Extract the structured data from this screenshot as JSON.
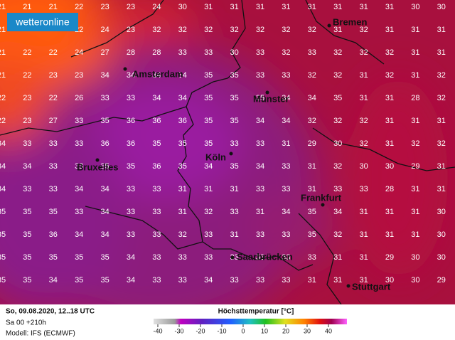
{
  "header": {
    "brand": "wetteronline"
  },
  "grid": {
    "rows": [
      [
        21,
        21,
        21,
        22,
        23,
        23,
        24,
        30,
        31,
        31,
        31,
        31,
        31,
        31,
        31,
        31,
        30,
        30
      ],
      [
        21,
        null,
        null,
        22,
        24,
        23,
        32,
        32,
        32,
        32,
        32,
        32,
        32,
        31,
        32,
        31,
        31,
        31
      ],
      [
        21,
        22,
        22,
        24,
        27,
        28,
        28,
        33,
        33,
        30,
        33,
        32,
        33,
        32,
        32,
        32,
        31,
        31
      ],
      [
        21,
        22,
        23,
        23,
        34,
        34,
        34,
        34,
        35,
        35,
        33,
        33,
        32,
        32,
        31,
        32,
        31,
        32
      ],
      [
        22,
        23,
        22,
        26,
        33,
        33,
        34,
        34,
        35,
        35,
        35,
        34,
        34,
        35,
        31,
        31,
        28,
        32
      ],
      [
        22,
        23,
        27,
        33,
        35,
        36,
        36,
        36,
        35,
        35,
        34,
        34,
        32,
        32,
        32,
        31,
        31,
        31
      ],
      [
        34,
        33,
        33,
        33,
        36,
        36,
        35,
        35,
        35,
        33,
        33,
        31,
        29,
        30,
        32,
        31,
        32,
        32
      ],
      [
        34,
        34,
        33,
        33,
        35,
        35,
        36,
        35,
        34,
        35,
        34,
        33,
        31,
        32,
        30,
        30,
        29,
        31
      ],
      [
        34,
        33,
        33,
        34,
        34,
        33,
        33,
        31,
        31,
        31,
        33,
        33,
        31,
        33,
        33,
        28,
        31,
        31
      ],
      [
        35,
        35,
        35,
        33,
        34,
        33,
        33,
        31,
        32,
        33,
        31,
        34,
        35,
        34,
        31,
        31,
        31,
        30
      ],
      [
        35,
        35,
        36,
        34,
        34,
        33,
        33,
        32,
        33,
        31,
        33,
        33,
        35,
        32,
        31,
        31,
        31,
        30
      ],
      [
        35,
        35,
        35,
        35,
        35,
        34,
        33,
        33,
        33,
        33,
        33,
        33,
        33,
        31,
        31,
        29,
        30,
        30
      ],
      [
        35,
        35,
        34,
        35,
        35,
        34,
        33,
        33,
        34,
        33,
        33,
        33,
        31,
        31,
        31,
        30,
        30,
        29
      ]
    ]
  },
  "cities": [
    {
      "name": "Bremen"
    },
    {
      "name": "Amsterdam"
    },
    {
      "name": "Münster"
    },
    {
      "name": "Köln"
    },
    {
      "name": "Bruxelles"
    },
    {
      "name": "Frankfurt"
    },
    {
      "name": "Saarbrücken"
    },
    {
      "name": "Stuttgart"
    }
  ],
  "footer": {
    "date": "So, 09.08.2020, 12..18 UTC",
    "run": "Sa 00 +210h",
    "model": "Modell: IFS (ECMWF)",
    "legend_title": "Höchsttemperatur [°C]",
    "legend_ticks": [
      -40,
      -30,
      -20,
      -10,
      0,
      10,
      20,
      30,
      40
    ]
  }
}
